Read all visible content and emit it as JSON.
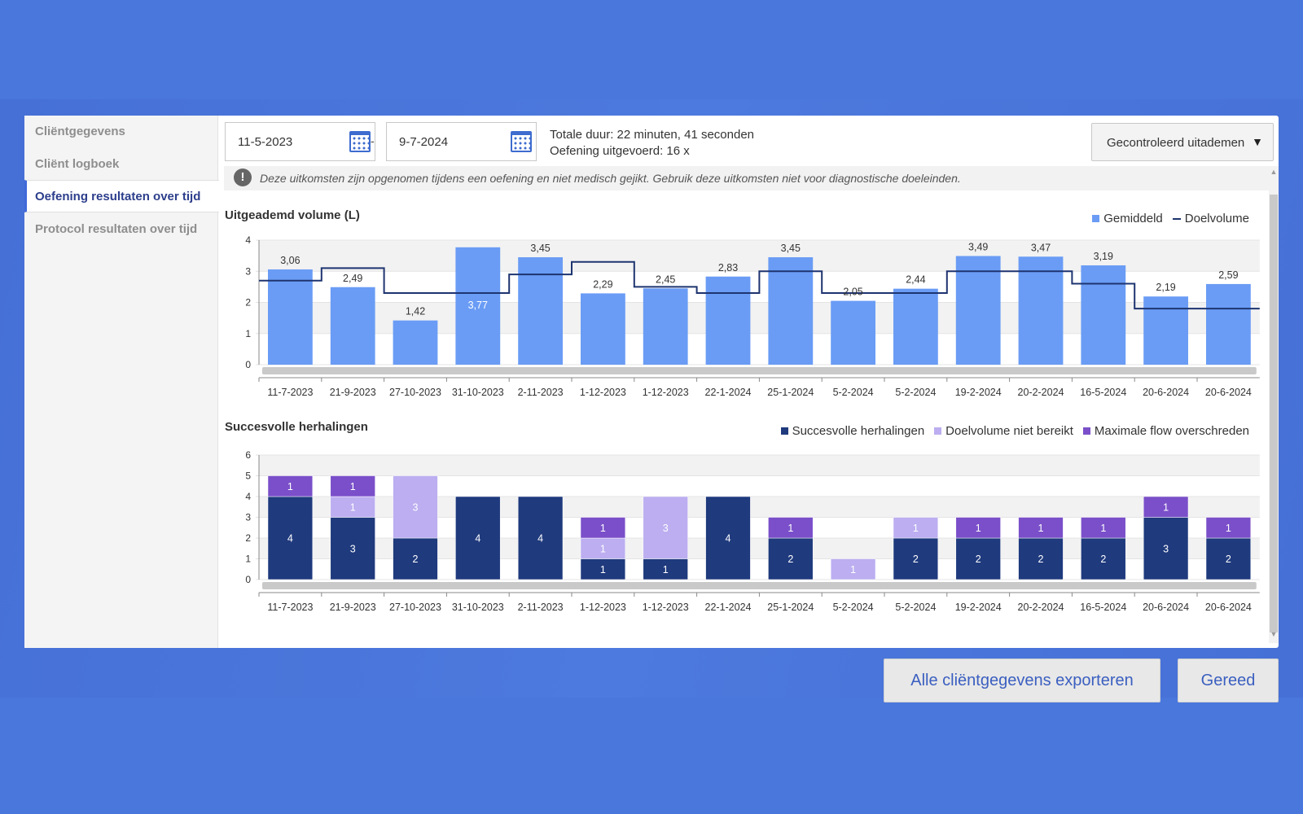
{
  "sidebar": {
    "items": [
      {
        "label": "Cliëntgegevens",
        "active": false
      },
      {
        "label": "Cliënt logboek",
        "active": false
      },
      {
        "label": "Oefening resultaten over tijd",
        "active": true
      },
      {
        "label": "Protocol resultaten over tijd",
        "active": false
      }
    ]
  },
  "filters": {
    "start_date": "11-5-2023",
    "separator": "-",
    "end_date": "9-7-2024",
    "calendar_icon": "calendar-icon"
  },
  "summary": {
    "duration": "Totale duur: 22 minuten, 41 seconden",
    "performed": "Oefening uitgevoerd: 16 x"
  },
  "exercise_select": {
    "value": "Gecontroleerd uitademen",
    "icon": "triangle-down-icon"
  },
  "notice": {
    "icon": "exclamation-icon",
    "text": "Deze uitkomsten zijn opgenomen tijdens een oefening en niet medisch gejikt. Gebruik deze uitkomsten niet voor diagnostische doeleinden."
  },
  "buttons": {
    "export": "Alle cliëntgegevens exporteren",
    "done": "Gereed"
  },
  "colors": {
    "bar_avg": "#6a9cf5",
    "target_line": "#1e3470",
    "success": "#1f3a7d",
    "target_missed": "#bcaef0",
    "max_flow": "#7a4fc9"
  },
  "chart_data": [
    {
      "type": "bar",
      "title": "Uitgeademd volume (L)",
      "categories": [
        "11-7-2023",
        "21-9-2023",
        "27-10-2023",
        "31-10-2023",
        "2-11-2023",
        "1-12-2023",
        "1-12-2023",
        "22-1-2024",
        "25-1-2024",
        "5-2-2024",
        "5-2-2024",
        "19-2-2024",
        "20-2-2024",
        "16-5-2024",
        "20-6-2024",
        "20-6-2024"
      ],
      "series": [
        {
          "name": "Gemiddeld",
          "values": [
            3.06,
            2.49,
            1.42,
            3.77,
            3.45,
            2.29,
            2.45,
            2.83,
            3.45,
            2.05,
            2.44,
            3.49,
            3.47,
            3.19,
            2.19,
            2.59
          ],
          "labels": [
            "3,06",
            "2,49",
            "1,42",
            "3,77",
            "3,45",
            "2,29",
            "2,45",
            "2,83",
            "3,45",
            "2,05",
            "2,44",
            "3,49",
            "3,47",
            "3,19",
            "2,19",
            "2,59"
          ]
        },
        {
          "name": "Doelvolume",
          "type": "step-line",
          "values": [
            2.7,
            3.1,
            2.3,
            2.3,
            2.9,
            3.3,
            2.5,
            2.3,
            3.0,
            2.3,
            2.3,
            3.0,
            3.0,
            2.6,
            1.8,
            1.8
          ]
        }
      ],
      "ylim": [
        0,
        4
      ],
      "yticks": [
        "0",
        "1",
        "2",
        "3",
        "4"
      ],
      "legend_position": "top-right",
      "grid": true
    },
    {
      "type": "bar",
      "stacked": true,
      "title": "Succesvolle herhalingen",
      "categories": [
        "11-7-2023",
        "21-9-2023",
        "27-10-2023",
        "31-10-2023",
        "2-11-2023",
        "1-12-2023",
        "1-12-2023",
        "22-1-2024",
        "25-1-2024",
        "5-2-2024",
        "5-2-2024",
        "19-2-2024",
        "20-2-2024",
        "16-5-2024",
        "20-6-2024",
        "20-6-2024"
      ],
      "series": [
        {
          "name": "Succesvolle herhalingen",
          "values": [
            4,
            3,
            2,
            4,
            4,
            1,
            1,
            4,
            2,
            0,
            2,
            2,
            2,
            2,
            3,
            2
          ]
        },
        {
          "name": "Doelvolume niet bereikt",
          "values": [
            0,
            1,
            3,
            0,
            0,
            1,
            3,
            0,
            0,
            1,
            1,
            0,
            0,
            0,
            0,
            0
          ]
        },
        {
          "name": "Maximale flow overschreden",
          "values": [
            1,
            1,
            0,
            0,
            0,
            1,
            0,
            0,
            1,
            0,
            0,
            1,
            1,
            1,
            1,
            1
          ]
        }
      ],
      "ylim": [
        0,
        6
      ],
      "yticks": [
        "0",
        "1",
        "2",
        "3",
        "4",
        "5",
        "6"
      ],
      "legend_position": "top-right",
      "grid": true
    }
  ]
}
